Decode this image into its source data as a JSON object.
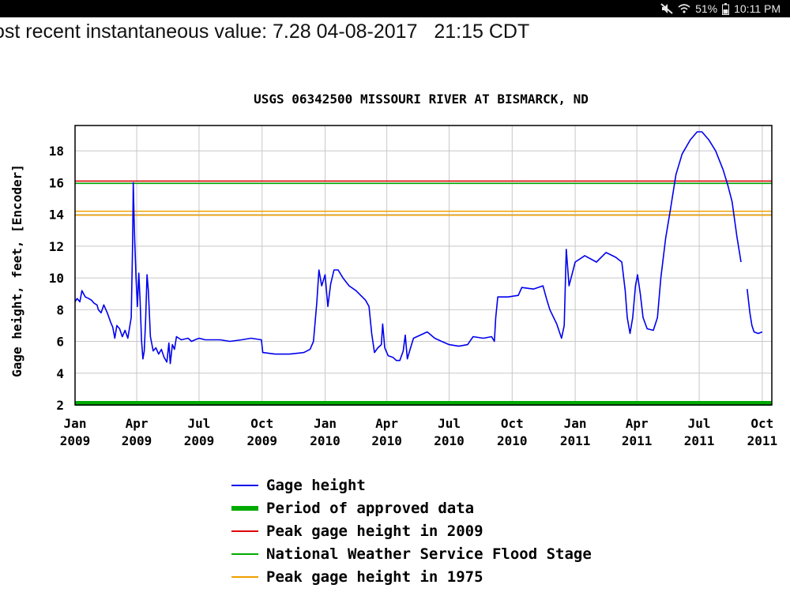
{
  "status_bar": {
    "battery": "51%",
    "time": "10:11 PM",
    "icons": [
      "mute-icon",
      "wifi-icon",
      "battery-icon"
    ]
  },
  "recent_value_text": "ost recent instantaneous value: 7.28 04-08-2017   21:15 CDT",
  "chart_data": {
    "type": "line",
    "title": "USGS 06342500 MISSOURI RIVER AT BISMARCK, ND",
    "ylabel": "Gage height, feet, [Encoder]",
    "xlabel": "",
    "ylim": [
      2,
      19.6
    ],
    "yticks": [
      2,
      4,
      6,
      8,
      10,
      12,
      14,
      16,
      18
    ],
    "xlim": [
      "2009-01-01",
      "2011-10-15"
    ],
    "xticks": [
      {
        "date": "2009-01-01",
        "label": [
          "Jan",
          "2009"
        ]
      },
      {
        "date": "2009-04-01",
        "label": [
          "Apr",
          "2009"
        ]
      },
      {
        "date": "2009-07-01",
        "label": [
          "Jul",
          "2009"
        ]
      },
      {
        "date": "2009-10-01",
        "label": [
          "Oct",
          "2009"
        ]
      },
      {
        "date": "2010-01-01",
        "label": [
          "Jan",
          "2010"
        ]
      },
      {
        "date": "2010-04-01",
        "label": [
          "Apr",
          "2010"
        ]
      },
      {
        "date": "2010-07-01",
        "label": [
          "Jul",
          "2010"
        ]
      },
      {
        "date": "2010-10-01",
        "label": [
          "Oct",
          "2010"
        ]
      },
      {
        "date": "2011-01-01",
        "label": [
          "Jan",
          "2011"
        ]
      },
      {
        "date": "2011-04-01",
        "label": [
          "Apr",
          "2011"
        ]
      },
      {
        "date": "2011-07-01",
        "label": [
          "Jul",
          "2011"
        ]
      },
      {
        "date": "2011-10-01",
        "label": [
          "Oct",
          "2011"
        ]
      }
    ],
    "grid": true,
    "series": [
      {
        "name": "Gage height",
        "color": "#0000ee",
        "segments": [
          [
            [
              "2009-01-01",
              8.5
            ],
            [
              "2009-01-04",
              8.7
            ],
            [
              "2009-01-08",
              8.5
            ],
            [
              "2009-01-11",
              9.2
            ],
            [
              "2009-01-16",
              8.8
            ],
            [
              "2009-01-21",
              8.7
            ],
            [
              "2009-01-25",
              8.6
            ],
            [
              "2009-01-29",
              8.4
            ],
            [
              "2009-02-02",
              8.3
            ],
            [
              "2009-02-04",
              8.0
            ],
            [
              "2009-02-08",
              7.8
            ],
            [
              "2009-02-12",
              8.3
            ],
            [
              "2009-02-17",
              7.8
            ],
            [
              "2009-02-22",
              7.2
            ],
            [
              "2009-02-25",
              6.9
            ],
            [
              "2009-02-28",
              6.2
            ],
            [
              "2009-03-03",
              7.0
            ],
            [
              "2009-03-07",
              6.8
            ],
            [
              "2009-03-11",
              6.3
            ],
            [
              "2009-03-15",
              6.7
            ],
            [
              "2009-03-19",
              6.2
            ],
            [
              "2009-03-24",
              7.5
            ],
            [
              "2009-03-26",
              12.0
            ],
            [
              "2009-03-27",
              16.0
            ],
            [
              "2009-03-28",
              14.0
            ],
            [
              "2009-03-29",
              12.4
            ],
            [
              "2009-03-31",
              10.0
            ],
            [
              "2009-04-02",
              8.2
            ],
            [
              "2009-04-04",
              10.3
            ],
            [
              "2009-04-06",
              8.5
            ],
            [
              "2009-04-08",
              6.1
            ],
            [
              "2009-04-10",
              4.9
            ],
            [
              "2009-04-12",
              5.4
            ],
            [
              "2009-04-14",
              7.3
            ],
            [
              "2009-04-16",
              10.2
            ],
            [
              "2009-04-18",
              9.2
            ],
            [
              "2009-04-21",
              6.3
            ],
            [
              "2009-04-25",
              5.4
            ],
            [
              "2009-04-29",
              5.6
            ],
            [
              "2009-05-03",
              5.2
            ],
            [
              "2009-05-07",
              5.5
            ],
            [
              "2009-05-11",
              5.0
            ],
            [
              "2009-05-15",
              4.7
            ],
            [
              "2009-05-18",
              5.9
            ],
            [
              "2009-05-20",
              4.6
            ],
            [
              "2009-05-23",
              5.8
            ],
            [
              "2009-05-26",
              5.5
            ],
            [
              "2009-05-29",
              6.3
            ],
            [
              "2009-06-05",
              6.1
            ],
            [
              "2009-06-15",
              6.2
            ],
            [
              "2009-06-20",
              6.0
            ],
            [
              "2009-06-25",
              6.1
            ],
            [
              "2009-07-01",
              6.2
            ],
            [
              "2009-07-10",
              6.1
            ],
            [
              "2009-07-20",
              6.1
            ],
            [
              "2009-08-01",
              6.1
            ],
            [
              "2009-08-15",
              6.0
            ],
            [
              "2009-09-01",
              6.1
            ],
            [
              "2009-09-15",
              6.2
            ],
            [
              "2009-09-30",
              6.1
            ],
            [
              "2009-10-02",
              5.3
            ],
            [
              "2009-10-20",
              5.2
            ],
            [
              "2009-11-10",
              5.2
            ],
            [
              "2009-12-01",
              5.3
            ],
            [
              "2009-12-10",
              5.5
            ],
            [
              "2009-12-15",
              6.0
            ],
            [
              "2009-12-20",
              8.5
            ],
            [
              "2009-12-23",
              10.5
            ],
            [
              "2009-12-27",
              9.5
            ],
            [
              "2010-01-01",
              10.2
            ],
            [
              "2010-01-05",
              8.2
            ],
            [
              "2010-01-09",
              9.6
            ],
            [
              "2010-01-14",
              10.5
            ],
            [
              "2010-01-20",
              10.5
            ],
            [
              "2010-01-27",
              10.0
            ],
            [
              "2010-02-05",
              9.5
            ],
            [
              "2010-02-15",
              9.2
            ],
            [
              "2010-02-22",
              8.9
            ],
            [
              "2010-03-01",
              8.6
            ],
            [
              "2010-03-06",
              8.2
            ],
            [
              "2010-03-10",
              6.5
            ],
            [
              "2010-03-14",
              5.3
            ],
            [
              "2010-03-19",
              5.6
            ],
            [
              "2010-03-24",
              5.8
            ],
            [
              "2010-03-26",
              7.1
            ],
            [
              "2010-03-29",
              5.6
            ],
            [
              "2010-04-03",
              5.1
            ],
            [
              "2010-04-10",
              5.0
            ],
            [
              "2010-04-15",
              4.8
            ],
            [
              "2010-04-20",
              4.8
            ],
            [
              "2010-04-25",
              5.4
            ],
            [
              "2010-04-28",
              6.4
            ],
            [
              "2010-05-01",
              4.9
            ],
            [
              "2010-05-05",
              5.5
            ],
            [
              "2010-05-10",
              6.2
            ],
            [
              "2010-05-20",
              6.4
            ],
            [
              "2010-05-30",
              6.6
            ],
            [
              "2010-06-10",
              6.2
            ],
            [
              "2010-06-20",
              6.0
            ],
            [
              "2010-07-01",
              5.8
            ],
            [
              "2010-07-15",
              5.7
            ],
            [
              "2010-07-28",
              5.8
            ],
            [
              "2010-08-05",
              6.3
            ],
            [
              "2010-08-20",
              6.2
            ],
            [
              "2010-09-01",
              6.3
            ],
            [
              "2010-09-05",
              6.0
            ],
            [
              "2010-09-07",
              7.5
            ],
            [
              "2010-09-10",
              8.8
            ],
            [
              "2010-09-25",
              8.8
            ],
            [
              "2010-10-10",
              8.9
            ],
            [
              "2010-10-15",
              9.4
            ],
            [
              "2010-11-01",
              9.3
            ],
            [
              "2010-11-15",
              9.5
            ],
            [
              "2010-11-20",
              8.7
            ],
            [
              "2010-11-25",
              8.0
            ],
            [
              "2010-12-05",
              7.1
            ],
            [
              "2010-12-12",
              6.2
            ],
            [
              "2010-12-16",
              7.0
            ],
            [
              "2010-12-19",
              11.8
            ],
            [
              "2010-12-23",
              9.5
            ],
            [
              "2011-01-01",
              11.0
            ],
            [
              "2011-01-15",
              11.4
            ],
            [
              "2011-02-01",
              11.0
            ],
            [
              "2011-02-15",
              11.6
            ],
            [
              "2011-03-01",
              11.3
            ],
            [
              "2011-03-10",
              11.0
            ],
            [
              "2011-03-15",
              9.2
            ],
            [
              "2011-03-18",
              7.5
            ],
            [
              "2011-03-22",
              6.5
            ],
            [
              "2011-03-26",
              7.5
            ],
            [
              "2011-03-30",
              9.5
            ],
            [
              "2011-04-02",
              10.2
            ],
            [
              "2011-04-06",
              9.0
            ],
            [
              "2011-04-10",
              7.5
            ],
            [
              "2011-04-16",
              6.8
            ],
            [
              "2011-04-25",
              6.7
            ],
            [
              "2011-05-01",
              7.5
            ],
            [
              "2011-05-06",
              10.0
            ],
            [
              "2011-05-13",
              12.5
            ],
            [
              "2011-05-20",
              14.3
            ],
            [
              "2011-05-28",
              16.5
            ],
            [
              "2011-06-06",
              17.8
            ],
            [
              "2011-06-18",
              18.7
            ],
            [
              "2011-06-28",
              19.2
            ],
            [
              "2011-07-05",
              19.2
            ],
            [
              "2011-07-15",
              18.7
            ],
            [
              "2011-07-25",
              18.0
            ],
            [
              "2011-08-05",
              16.8
            ],
            [
              "2011-08-12",
              15.8
            ],
            [
              "2011-08-18",
              14.8
            ],
            [
              "2011-08-25",
              12.6
            ],
            [
              "2011-08-28",
              11.8
            ],
            [
              "2011-08-31",
              11.0
            ]
          ],
          [
            [
              "2011-09-09",
              9.3
            ],
            [
              "2011-09-13",
              7.8
            ],
            [
              "2011-09-16",
              7.0
            ],
            [
              "2011-09-19",
              6.6
            ],
            [
              "2011-09-25",
              6.5
            ],
            [
              "2011-10-01",
              6.6
            ]
          ]
        ]
      },
      {
        "name": "Period of approved data",
        "color": "#00aa00",
        "hline": 2.1,
        "width": 6
      },
      {
        "name": "Peak gage height in 2009",
        "color": "#dd0000",
        "hline": 16.1,
        "width": 1.5
      },
      {
        "name": "National Weather Service Flood Stage",
        "color": "#00aa00",
        "hline": 15.95,
        "width": 1.5
      },
      {
        "name": "Peak gage height in 1975",
        "color": "#f0a000",
        "hline": 14.2,
        "width": 1.5
      },
      {
        "name": "",
        "color": "#f0a000",
        "hline": 13.95,
        "width": 1.5
      }
    ],
    "legend_position": "bottom"
  }
}
